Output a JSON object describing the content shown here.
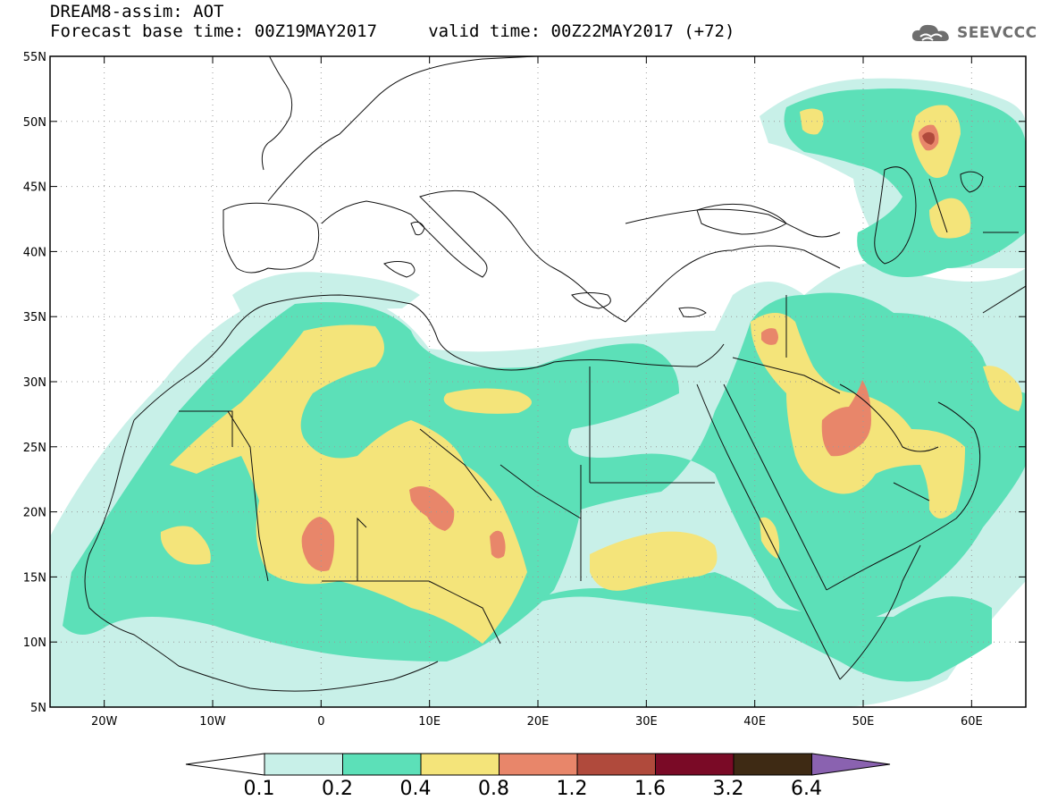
{
  "header": {
    "title": "DREAM8-assim: AOT",
    "subtitle": "Forecast base time: 00Z19MAY2017     valid time: 00Z22MAY2017 (+72)"
  },
  "logo": {
    "text": "SEEVCCC",
    "icon": "cloud-icon"
  },
  "map": {
    "projection": "lat-lon",
    "lon_range": [
      -25,
      65
    ],
    "lat_range": [
      5,
      55
    ],
    "grid": true,
    "lat_labels": [
      "55N",
      "50N",
      "45N",
      "40N",
      "35N",
      "30N",
      "25N",
      "20N",
      "15N",
      "10N",
      "5N"
    ],
    "lon_labels": [
      "20W",
      "10W",
      "0",
      "10E",
      "20E",
      "30E",
      "40E",
      "50E",
      "60E"
    ],
    "field": "Aerosol optical thickness (AOT)"
  },
  "colorbar": {
    "levels": [
      "0.1",
      "0.2",
      "0.4",
      "0.8",
      "1.2",
      "1.6",
      "3.2",
      "6.4"
    ],
    "colors": [
      "#ffffff",
      "#c8f0e8",
      "#5ce0b8",
      "#f4e47a",
      "#e8866a",
      "#b04a3c",
      "#7a0a26",
      "#3e2a14",
      "#8a62b0"
    ]
  }
}
